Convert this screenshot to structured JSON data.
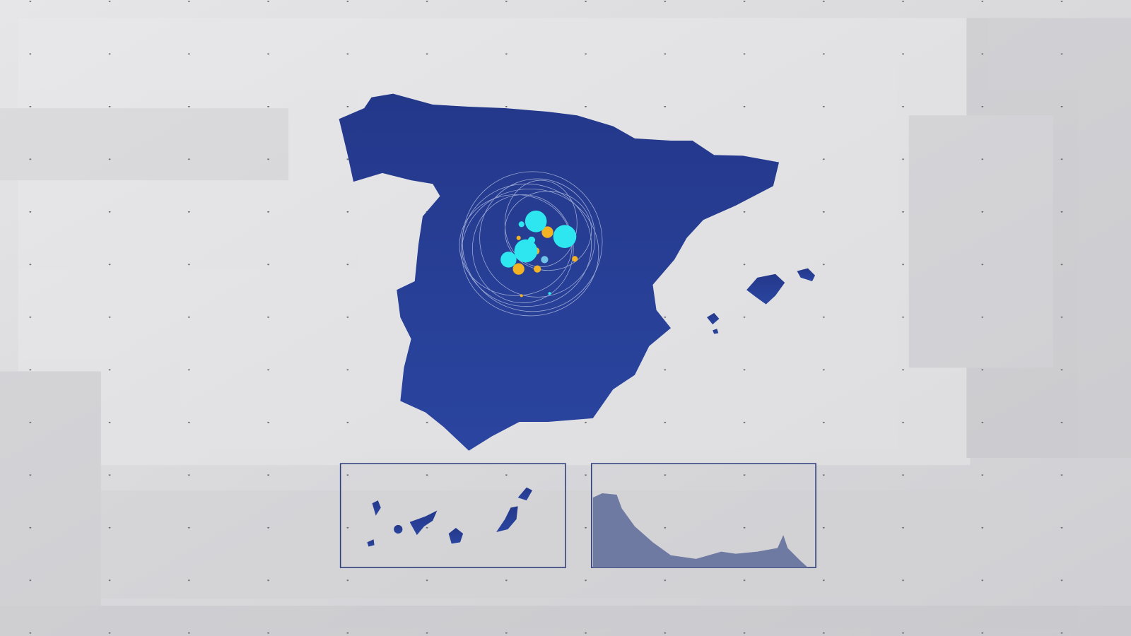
{
  "colors": {
    "background": "#dcdcde",
    "land": "#24388a",
    "land_light": "#2a45a0",
    "inset_border": "#2b3a78",
    "bubble_primary": "#2ee6f0",
    "bubble_secondary": "#f2b223",
    "bubble_tertiary": "#6fc3e6",
    "ring": "#c9d2ef",
    "ceuta_melilla_fill": "#6f7aa3"
  },
  "map": {
    "regions": [
      "peninsula",
      "balearic-islands",
      "canary-islands-inset",
      "ceuta-melilla-inset"
    ]
  }
}
